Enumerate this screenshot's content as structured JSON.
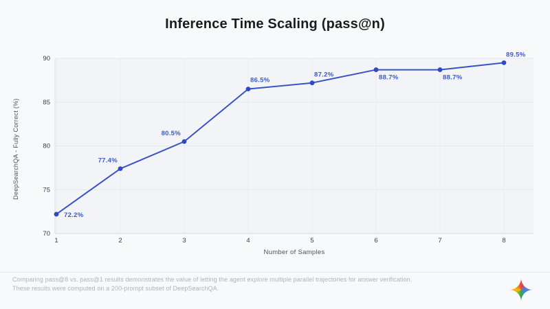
{
  "title": "Inference Time Scaling (pass@n)",
  "chart_data": {
    "type": "line",
    "title": "Inference Time Scaling (pass@n)",
    "x": [
      1,
      2,
      3,
      4,
      5,
      6,
      7,
      8
    ],
    "values": [
      72.2,
      77.4,
      80.5,
      86.5,
      87.2,
      88.7,
      88.7,
      89.5
    ],
    "point_labels": [
      "72.2%",
      "77.4%",
      "80.5%",
      "86.5%",
      "87.2%",
      "88.7%",
      "88.7%",
      "89.5%"
    ],
    "xlabel": "Number of Samples",
    "ylabel": "DeepSearchQA - Fully Correct (%)",
    "ylim": [
      70,
      90
    ],
    "yticks": [
      70,
      75,
      80,
      85,
      90
    ],
    "xticks": [
      "1",
      "2",
      "3",
      "4",
      "5",
      "6",
      "7",
      "8"
    ],
    "grid": true,
    "legend": false,
    "line_color": "#3752c6",
    "point_color": "#2f4ac0",
    "label_color": "#3d5ac8",
    "tick_color": "#3a3d42"
  },
  "footer": {
    "line1": "Comparing pass@8 vs. pass@1 results demonstrates the value of letting the agent explore multiple parallel trajectories for answer verification.",
    "line2": "These results were computed on a 200-prompt subset of DeepSearchQA."
  },
  "logo": {
    "name": "gemini-sparkle",
    "colors": {
      "red": "#e8453c",
      "blue": "#4285f4",
      "green": "#34a853",
      "yellow": "#fbbc04"
    }
  }
}
